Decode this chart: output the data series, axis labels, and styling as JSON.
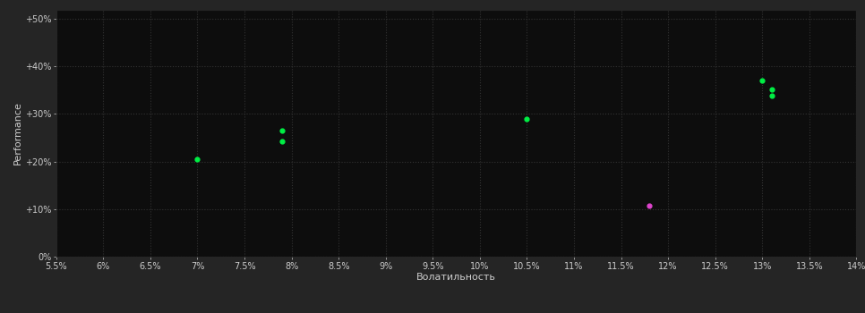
{
  "background_color": "#252525",
  "plot_bg_color": "#0d0d0d",
  "grid_color": "#333333",
  "grid_style": ":",
  "xlabel": "Волатильность",
  "ylabel": "Performance",
  "xlim": [
    0.055,
    0.14
  ],
  "ylim": [
    0.0,
    0.52
  ],
  "xticks": [
    0.055,
    0.06,
    0.065,
    0.07,
    0.075,
    0.08,
    0.085,
    0.09,
    0.095,
    0.1,
    0.105,
    0.11,
    0.115,
    0.12,
    0.125,
    0.13,
    0.135,
    0.14
  ],
  "yticks": [
    0.0,
    0.1,
    0.2,
    0.3,
    0.4,
    0.5
  ],
  "ytick_labels": [
    "0%",
    "+10%",
    "+20%",
    "+30%",
    "+40%",
    "+50%"
  ],
  "xtick_labels": [
    "5.5%",
    "6%",
    "6.5%",
    "7%",
    "7.5%",
    "8%",
    "8.5%",
    "9%",
    "9.5%",
    "10%",
    "10.5%",
    "11%",
    "11.5%",
    "12%",
    "12.5%",
    "13%",
    "13.5%",
    "14%"
  ],
  "green_points": [
    [
      0.07,
      0.205
    ],
    [
      0.079,
      0.265
    ],
    [
      0.079,
      0.243
    ],
    [
      0.105,
      0.29
    ],
    [
      0.13,
      0.37
    ],
    [
      0.131,
      0.352
    ],
    [
      0.131,
      0.338
    ]
  ],
  "magenta_points": [
    [
      0.118,
      0.108
    ]
  ],
  "green_color": "#00ee44",
  "magenta_color": "#dd44cc",
  "point_size": 12,
  "tick_color": "#cccccc",
  "tick_fontsize": 7,
  "label_fontsize": 8,
  "label_color": "#cccccc"
}
